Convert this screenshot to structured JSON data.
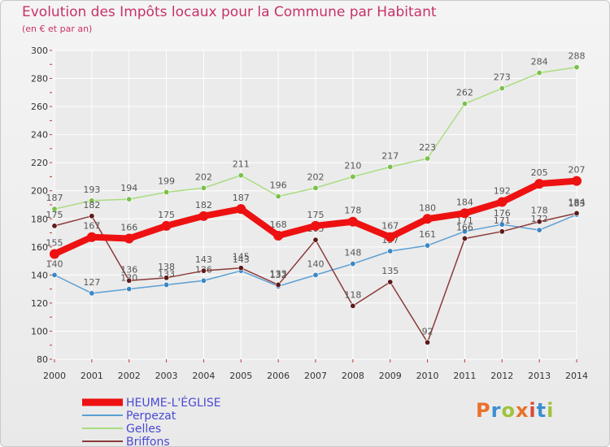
{
  "header": {
    "title": "Evolution des Impôts locaux pour la Commune par Habitant",
    "subtitle": "(en € et par an)"
  },
  "colors": {
    "title": "#c83269",
    "grid": "#ffffff",
    "axis_text": "#333333",
    "label_text": "#555555"
  },
  "logo": {
    "text": "Proxiti",
    "colors": [
      "#e8722b",
      "#3a8fd3",
      "#a0c33a",
      "#e8722b",
      "#d84a3a",
      "#3a8fd3",
      "#a0c33a"
    ]
  },
  "chart_data": {
    "type": "line",
    "x": [
      "2000",
      "2001",
      "2002",
      "2003",
      "2004",
      "2005",
      "2006",
      "2007",
      "2008",
      "2009",
      "2010",
      "2011",
      "2012",
      "2013",
      "2014"
    ],
    "ylim": [
      80,
      300
    ],
    "yticks": [
      80,
      100,
      120,
      140,
      160,
      180,
      200,
      220,
      240,
      260,
      280,
      300
    ],
    "grid": true,
    "legend_position": "bottom-left",
    "series": [
      {
        "name": "HEUME-L'ÉGLISE",
        "color": "#ee1111",
        "width": 8,
        "marker": "#ee1111",
        "labels": true,
        "values": [
          155,
          167,
          166,
          175,
          182,
          187,
          168,
          175,
          178,
          167,
          180,
          184,
          192,
          205,
          207
        ]
      },
      {
        "name": "Perpezat",
        "color": "#5a9fd4",
        "width": 1.5,
        "marker": "#3b86c5",
        "labels": true,
        "values": [
          140,
          127,
          130,
          133,
          136,
          143,
          132,
          140,
          148,
          157,
          161,
          171,
          176,
          172,
          183
        ]
      },
      {
        "name": "Gelles",
        "color": "#a9dd7f",
        "width": 1.5,
        "marker": "#7bc04a",
        "labels": true,
        "values": [
          187,
          193,
          194,
          199,
          202,
          211,
          196,
          202,
          210,
          217,
          223,
          262,
          273,
          284,
          288
        ]
      },
      {
        "name": "Briffons",
        "color": "#8b3a3a",
        "width": 1.5,
        "marker": "#5e1a1a",
        "labels": true,
        "values": [
          175,
          182,
          136,
          138,
          143,
          145,
          133,
          165,
          118,
          135,
          92,
          166,
          171,
          178,
          184
        ]
      }
    ]
  }
}
